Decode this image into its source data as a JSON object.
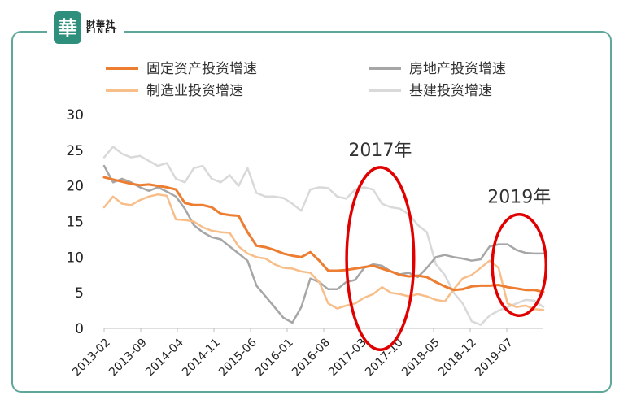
{
  "branding": {
    "logo_cn": "財華社",
    "logo_en": "FINET",
    "seal_char": "華",
    "brand_color": "#2f8f7d"
  },
  "chart_data": {
    "type": "line",
    "title": "",
    "xlabel": "",
    "ylabel": "",
    "ylim": [
      0,
      30
    ],
    "yticks": [
      "0",
      "5",
      "10",
      "15",
      "20",
      "25",
      "30"
    ],
    "grid": false,
    "legend_position": "top",
    "xtick_labels": [
      "2013-02",
      "2013-09",
      "2014-04",
      "2014-11",
      "2015-06",
      "2016-01",
      "2016-08",
      "2017-03",
      "2017-10",
      "2018-05",
      "2018-12",
      "2019-07"
    ],
    "series": [
      {
        "name": "固定资产投资增速",
        "color": "#ed7d31",
        "stroke_width": 3,
        "points": [
          [
            0,
            21.2
          ],
          [
            1,
            20.9
          ],
          [
            2,
            20.6
          ],
          [
            3,
            20.3
          ],
          [
            4,
            20.1
          ],
          [
            5,
            20.2
          ],
          [
            6,
            20.0
          ],
          [
            7,
            19.8
          ],
          [
            8,
            19.5
          ],
          [
            9,
            17.6
          ],
          [
            10,
            17.3
          ],
          [
            11,
            17.3
          ],
          [
            12,
            17.0
          ],
          [
            13,
            16.1
          ],
          [
            14,
            15.9
          ],
          [
            15,
            15.8
          ],
          [
            16,
            13.5
          ],
          [
            17,
            11.6
          ],
          [
            18,
            11.4
          ],
          [
            19,
            11.0
          ],
          [
            20,
            10.5
          ],
          [
            21,
            10.2
          ],
          [
            22,
            10.0
          ],
          [
            23,
            10.7
          ],
          [
            24,
            9.5
          ],
          [
            25,
            8.1
          ],
          [
            26,
            8.1
          ],
          [
            27,
            8.2
          ],
          [
            28,
            8.4
          ],
          [
            29,
            8.6
          ],
          [
            30,
            8.8
          ],
          [
            31,
            8.4
          ],
          [
            32,
            8.0
          ],
          [
            33,
            7.5
          ],
          [
            34,
            7.3
          ],
          [
            35,
            7.4
          ],
          [
            36,
            7.2
          ],
          [
            37,
            6.5
          ],
          [
            38,
            5.9
          ],
          [
            39,
            5.4
          ],
          [
            40,
            5.5
          ],
          [
            41,
            5.9
          ],
          [
            42,
            6.0
          ],
          [
            43,
            6.0
          ],
          [
            44,
            6.1
          ],
          [
            45,
            5.8
          ],
          [
            46,
            5.6
          ],
          [
            47,
            5.4
          ],
          [
            48,
            5.4
          ],
          [
            49,
            5.1
          ]
        ]
      },
      {
        "name": "房地产投资增速",
        "color": "#a6a6a6",
        "stroke_width": 2.5,
        "points": [
          [
            0,
            22.8
          ],
          [
            1,
            20.5
          ],
          [
            2,
            21.0
          ],
          [
            3,
            20.5
          ],
          [
            4,
            19.8
          ],
          [
            5,
            19.3
          ],
          [
            6,
            19.8
          ],
          [
            7,
            19.2
          ],
          [
            8,
            18.5
          ],
          [
            9,
            16.8
          ],
          [
            10,
            14.5
          ],
          [
            11,
            13.5
          ],
          [
            12,
            12.8
          ],
          [
            13,
            12.5
          ],
          [
            14,
            11.5
          ],
          [
            15,
            10.5
          ],
          [
            16,
            9.5
          ],
          [
            17,
            6.0
          ],
          [
            18,
            4.5
          ],
          [
            19,
            3.0
          ],
          [
            20,
            1.5
          ],
          [
            21,
            0.8
          ],
          [
            22,
            3.0
          ],
          [
            23,
            7.0
          ],
          [
            24,
            6.5
          ],
          [
            25,
            5.5
          ],
          [
            26,
            5.5
          ],
          [
            27,
            6.5
          ],
          [
            28,
            6.8
          ],
          [
            29,
            8.5
          ],
          [
            30,
            9.0
          ],
          [
            31,
            8.8
          ],
          [
            32,
            8.0
          ],
          [
            33,
            7.6
          ],
          [
            34,
            7.8
          ],
          [
            35,
            7.2
          ],
          [
            36,
            8.5
          ],
          [
            37,
            10.0
          ],
          [
            38,
            10.3
          ],
          [
            39,
            10.0
          ],
          [
            40,
            9.8
          ],
          [
            41,
            9.5
          ],
          [
            42,
            9.7
          ],
          [
            43,
            11.5
          ],
          [
            44,
            11.8
          ],
          [
            45,
            11.8
          ],
          [
            46,
            11.0
          ],
          [
            47,
            10.6
          ],
          [
            48,
            10.5
          ],
          [
            49,
            10.5
          ]
        ]
      },
      {
        "name": "制造业投资增速",
        "color": "#f8be8a",
        "stroke_width": 2.5,
        "points": [
          [
            0,
            17.0
          ],
          [
            1,
            18.5
          ],
          [
            2,
            17.5
          ],
          [
            3,
            17.3
          ],
          [
            4,
            18.0
          ],
          [
            5,
            18.5
          ],
          [
            6,
            18.8
          ],
          [
            7,
            18.6
          ],
          [
            8,
            15.3
          ],
          [
            9,
            15.2
          ],
          [
            10,
            15.0
          ],
          [
            11,
            14.2
          ],
          [
            12,
            13.7
          ],
          [
            13,
            13.5
          ],
          [
            14,
            13.4
          ],
          [
            15,
            11.5
          ],
          [
            16,
            10.5
          ],
          [
            17,
            10.0
          ],
          [
            18,
            9.8
          ],
          [
            19,
            9.0
          ],
          [
            20,
            8.5
          ],
          [
            21,
            8.4
          ],
          [
            22,
            8.0
          ],
          [
            23,
            7.8
          ],
          [
            24,
            6.5
          ],
          [
            25,
            3.5
          ],
          [
            26,
            2.8
          ],
          [
            27,
            3.2
          ],
          [
            28,
            3.5
          ],
          [
            29,
            4.3
          ],
          [
            30,
            4.8
          ],
          [
            31,
            5.8
          ],
          [
            32,
            5.0
          ],
          [
            33,
            4.8
          ],
          [
            34,
            4.5
          ],
          [
            35,
            4.8
          ],
          [
            36,
            4.5
          ],
          [
            37,
            4.0
          ],
          [
            38,
            3.8
          ],
          [
            39,
            5.5
          ],
          [
            40,
            7.0
          ],
          [
            41,
            7.5
          ],
          [
            42,
            8.5
          ],
          [
            43,
            9.5
          ],
          [
            44,
            8.5
          ],
          [
            45,
            3.5
          ],
          [
            46,
            3.0
          ],
          [
            47,
            3.2
          ],
          [
            48,
            2.7
          ],
          [
            49,
            2.6
          ]
        ]
      },
      {
        "name": "基建投资增速",
        "color": "#d9d9d9",
        "stroke_width": 2.5,
        "points": [
          [
            0,
            24.0
          ],
          [
            1,
            25.5
          ],
          [
            2,
            24.5
          ],
          [
            3,
            24.0
          ],
          [
            4,
            24.2
          ],
          [
            5,
            23.5
          ],
          [
            6,
            22.8
          ],
          [
            7,
            23.2
          ],
          [
            8,
            21.0
          ],
          [
            9,
            20.5
          ],
          [
            10,
            22.5
          ],
          [
            11,
            22.8
          ],
          [
            12,
            21.0
          ],
          [
            13,
            20.5
          ],
          [
            14,
            21.5
          ],
          [
            15,
            20.0
          ],
          [
            16,
            22.5
          ],
          [
            17,
            19.0
          ],
          [
            18,
            18.5
          ],
          [
            19,
            18.5
          ],
          [
            20,
            18.3
          ],
          [
            21,
            17.5
          ],
          [
            22,
            16.5
          ],
          [
            23,
            19.5
          ],
          [
            24,
            19.8
          ],
          [
            25,
            19.7
          ],
          [
            26,
            18.5
          ],
          [
            27,
            18.2
          ],
          [
            28,
            19.5
          ],
          [
            29,
            19.8
          ],
          [
            30,
            19.5
          ],
          [
            31,
            17.5
          ],
          [
            32,
            17.0
          ],
          [
            33,
            16.8
          ],
          [
            34,
            16.0
          ],
          [
            35,
            14.5
          ],
          [
            36,
            13.5
          ],
          [
            37,
            9.0
          ],
          [
            38,
            7.5
          ],
          [
            39,
            5.0
          ],
          [
            40,
            3.5
          ],
          [
            41,
            1.0
          ],
          [
            42,
            0.5
          ],
          [
            43,
            1.8
          ],
          [
            44,
            2.5
          ],
          [
            45,
            3.0
          ],
          [
            46,
            3.5
          ],
          [
            47,
            4.0
          ],
          [
            48,
            3.9
          ],
          [
            49,
            3.0
          ]
        ]
      }
    ],
    "annotations": [
      {
        "label": "2017年",
        "center_x": 30.8,
        "center_y": 9.8,
        "rx": 3.75,
        "ry": 12.8,
        "color": "#e00000"
      },
      {
        "label": "2019年",
        "center_x": 46.3,
        "center_y": 8.9,
        "rx": 3.0,
        "ry": 7.1,
        "color": "#e00000"
      }
    ]
  }
}
